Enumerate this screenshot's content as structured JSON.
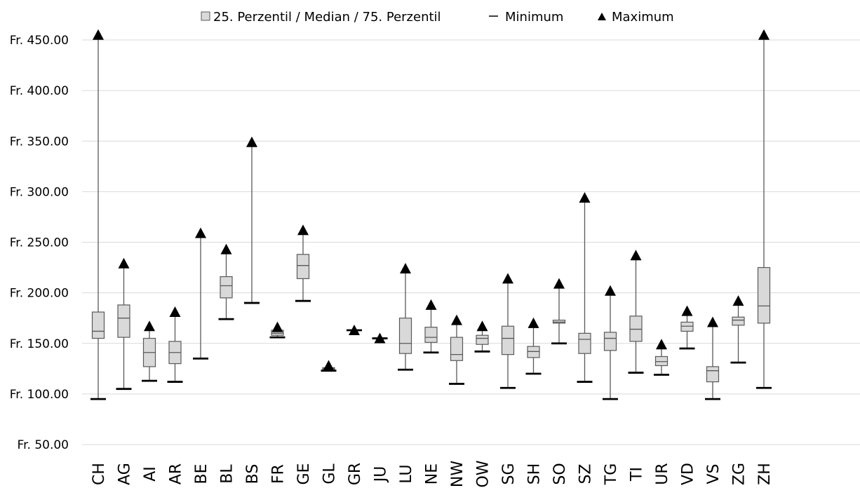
{
  "chart_data": {
    "type": "box",
    "title": "",
    "xlabel": "",
    "ylabel": "",
    "ylim": [
      50,
      450
    ],
    "yticks": [
      50,
      100,
      150,
      200,
      250,
      300,
      350,
      400,
      450
    ],
    "ytick_labels": [
      "Fr. 50.00",
      "Fr. 100.00",
      "Fr. 150.00",
      "Fr. 200.00",
      "Fr. 250.00",
      "Fr. 300.00",
      "Fr. 350.00",
      "Fr. 400.00",
      "Fr. 450.00"
    ],
    "grid": true,
    "legend_position": "top-center",
    "legend": [
      {
        "marker": "box",
        "label": "25. Perzentil / Median / 75. Perzentil"
      },
      {
        "marker": "dash",
        "label": "Minimum"
      },
      {
        "marker": "triangle",
        "label": "Maximum"
      }
    ],
    "categories": [
      "CH",
      "AG",
      "AI",
      "AR",
      "BE",
      "BL",
      "BS",
      "FR",
      "GE",
      "GL",
      "GR",
      "JU",
      "LU",
      "NE",
      "NW",
      "OW",
      "SG",
      "SH",
      "SO",
      "SZ",
      "TG",
      "TI",
      "UR",
      "VD",
      "VS",
      "ZG",
      "ZH"
    ],
    "series": [
      {
        "min": 95,
        "q1": 155,
        "median": 162,
        "q3": 181,
        "max": 455
      },
      {
        "min": 105,
        "q1": 156,
        "median": 175,
        "q3": 188,
        "max": 229
      },
      {
        "min": 113,
        "q1": 127,
        "median": 141,
        "q3": 155,
        "max": 167
      },
      {
        "min": 112,
        "q1": 130,
        "median": 141,
        "q3": 152,
        "max": 181
      },
      {
        "min": 135,
        "q1": 135,
        "median": 135,
        "q3": 135,
        "max": 259
      },
      {
        "min": 174,
        "q1": 195,
        "median": 207,
        "q3": 216,
        "max": 243
      },
      {
        "min": 190,
        "q1": 190,
        "median": 190,
        "q3": 190,
        "max": 349
      },
      {
        "min": 156,
        "q1": 158,
        "median": 160,
        "q3": 163,
        "max": 166
      },
      {
        "min": 192,
        "q1": 214,
        "median": 227,
        "q3": 238,
        "max": 262
      },
      {
        "min": 123,
        "q1": 124,
        "median": 125,
        "q3": 126,
        "max": 128
      },
      {
        "min": 163,
        "q1": 163,
        "median": 163,
        "q3": 163,
        "max": 163
      },
      {
        "min": 155,
        "q1": 155,
        "median": 155,
        "q3": 155,
        "max": 155
      },
      {
        "min": 124,
        "q1": 140,
        "median": 150,
        "q3": 175,
        "max": 224
      },
      {
        "min": 141,
        "q1": 151,
        "median": 156,
        "q3": 166,
        "max": 188
      },
      {
        "min": 110,
        "q1": 133,
        "median": 139,
        "q3": 156,
        "max": 173
      },
      {
        "min": 142,
        "q1": 149,
        "median": 155,
        "q3": 158,
        "max": 167
      },
      {
        "min": 106,
        "q1": 139,
        "median": 155,
        "q3": 167,
        "max": 214
      },
      {
        "min": 120,
        "q1": 136,
        "median": 142,
        "q3": 147,
        "max": 170
      },
      {
        "min": 150,
        "q1": 170,
        "median": 171,
        "q3": 173,
        "max": 209
      },
      {
        "min": 112,
        "q1": 140,
        "median": 154,
        "q3": 160,
        "max": 294
      },
      {
        "min": 95,
        "q1": 143,
        "median": 155,
        "q3": 161,
        "max": 202
      },
      {
        "min": 121,
        "q1": 152,
        "median": 164,
        "q3": 177,
        "max": 237
      },
      {
        "min": 119,
        "q1": 128,
        "median": 132,
        "q3": 137,
        "max": 149
      },
      {
        "min": 145,
        "q1": 162,
        "median": 167,
        "q3": 171,
        "max": 182
      },
      {
        "min": 95,
        "q1": 112,
        "median": 123,
        "q3": 127,
        "max": 171
      },
      {
        "min": 131,
        "q1": 168,
        "median": 173,
        "q3": 176,
        "max": 192
      },
      {
        "min": 106,
        "q1": 170,
        "median": 187,
        "q3": 225,
        "max": 455
      }
    ]
  },
  "colors": {
    "box_fill": "#d9d9d9",
    "box_stroke": "#595959",
    "whisker": "#595959",
    "grid": "#d9d9d9",
    "marker": "#000000"
  }
}
